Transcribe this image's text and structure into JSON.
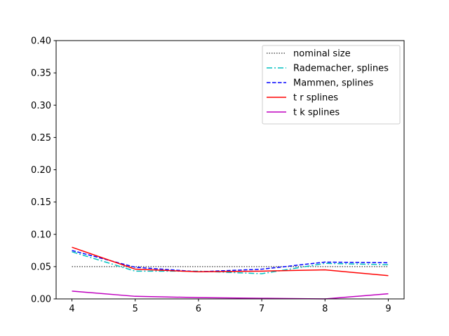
{
  "chart_data": {
    "type": "line",
    "title": "",
    "xlabel": "",
    "ylabel": "",
    "x": [
      4,
      5,
      6,
      7,
      8,
      9
    ],
    "xlim": [
      3.75,
      9.25
    ],
    "ylim": [
      0,
      0.4
    ],
    "x_ticks": [
      "4",
      "5",
      "6",
      "7",
      "8",
      "9"
    ],
    "y_ticks": [
      "0.00",
      "0.05",
      "0.10",
      "0.15",
      "0.20",
      "0.25",
      "0.30",
      "0.35",
      "0.40"
    ],
    "grid": false,
    "legend_position": "top-right",
    "series": [
      {
        "name": "nominal size",
        "color": "#000000",
        "style": "dotted",
        "values": [
          0.05,
          0.05,
          0.05,
          0.05,
          0.05,
          0.05
        ]
      },
      {
        "name": "Rademacher, splines",
        "color": "#00bfbf",
        "style": "dashdot",
        "values": [
          0.073,
          0.043,
          0.043,
          0.039,
          0.055,
          0.053
        ]
      },
      {
        "name": "Mammen, splines",
        "color": "#0000ff",
        "style": "dashed",
        "values": [
          0.075,
          0.049,
          0.042,
          0.046,
          0.057,
          0.056
        ]
      },
      {
        "name": "t r splines",
        "color": "#ff0000",
        "style": "solid",
        "values": [
          0.08,
          0.046,
          0.042,
          0.043,
          0.045,
          0.036
        ]
      },
      {
        "name": "t k splines",
        "color": "#bf00bf",
        "style": "solid",
        "values": [
          0.012,
          0.004,
          0.002,
          0.001,
          0.0,
          0.008
        ]
      }
    ]
  }
}
